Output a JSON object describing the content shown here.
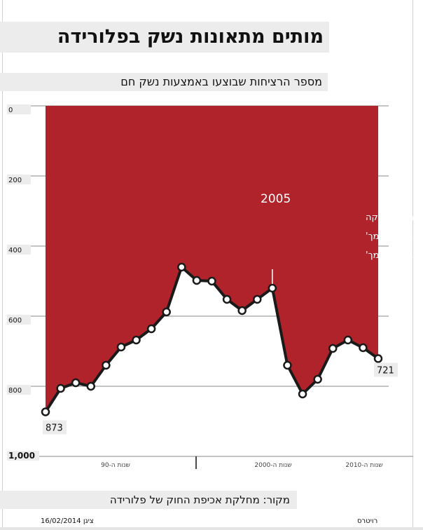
{
  "title": "מותים מתאונות נשק בפלורידה",
  "subtitle": "מספר הרציחות שבוצעו באמצעות נשק חם",
  "source": "מקור: מחלקת אכיפת החוק של פלורידה",
  "footer": {
    "date": "16/02/2014",
    "credit_left": "ציגן",
    "credit_right": "רויטרס"
  },
  "colors": {
    "fill": "#b0232b",
    "line": "#1a1a1a",
    "grid": "#8a8a8a",
    "label_bg": "#ececec"
  },
  "chart_data": {
    "type": "area",
    "x": [
      1990,
      1991,
      1992,
      1993,
      1994,
      1995,
      1996,
      1997,
      1998,
      1999,
      2000,
      2001,
      2002,
      2003,
      2004,
      2005,
      2006,
      2007,
      2008,
      2009,
      2010,
      2011,
      2012
    ],
    "values": [
      873,
      806,
      790,
      800,
      740,
      688,
      668,
      636,
      588,
      460,
      498,
      500,
      552,
      584,
      552,
      520,
      740,
      822,
      780,
      692,
      668,
      690,
      721
    ],
    "y_axis_inverted": true,
    "ylim": [
      0,
      1000
    ],
    "yticks": [
      "0",
      "200",
      "400",
      "600",
      "800",
      "1,000"
    ],
    "x_groups": [
      "שנות ה-90",
      "שנות ה-2000",
      "שנות ה-2010"
    ],
    "point_labels": [
      {
        "year": 1990,
        "text": "873"
      },
      {
        "year": 2012,
        "text": "721"
      }
    ],
    "annotation": {
      "year": 2005,
      "title": "2005",
      "lines": [
        "פלורידה חוקקה",
        "חוק 'הגן על עצמך'",
        "חוק 'הגן על עצמך'"
      ]
    },
    "grid": true
  }
}
